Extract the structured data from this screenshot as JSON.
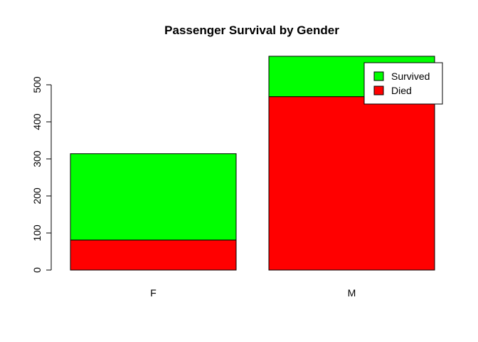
{
  "chart_data": {
    "type": "bar",
    "stacked": true,
    "title": "Passenger Survival by Gender",
    "xlabel": "",
    "ylabel": "",
    "categories": [
      "F",
      "M"
    ],
    "series": [
      {
        "name": "Died",
        "values": [
          81,
          468
        ],
        "color": "#ff0000"
      },
      {
        "name": "Survived",
        "values": [
          233,
          109
        ],
        "color": "#00ff00"
      }
    ],
    "legend_order": [
      "Survived",
      "Died"
    ],
    "legend_position": "top-right",
    "yticks": [
      0,
      100,
      200,
      300,
      400,
      500
    ],
    "ylim": [
      0,
      577
    ],
    "grid": false
  }
}
